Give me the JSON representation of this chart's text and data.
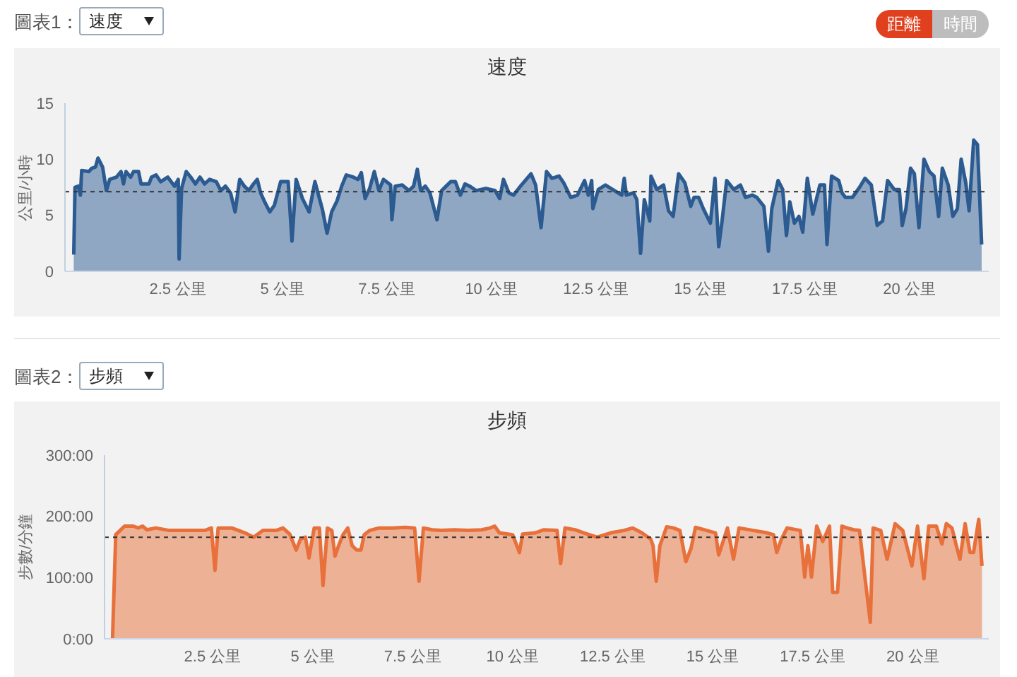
{
  "chart_data": [
    {
      "type": "area",
      "title": "速度",
      "ylabel": "公里/小時",
      "annotations": [
        "圖表1：",
        "速度",
        "距離",
        "時間"
      ],
      "color": "#2c5b91",
      "x": [
        0.01,
        0.04,
        0.12,
        0.17,
        0.2,
        0.37,
        0.44,
        0.53,
        0.59,
        0.7,
        0.79,
        0.87,
        1.03,
        1.14,
        1.2,
        1.26,
        1.37,
        1.44,
        1.56,
        1.62,
        1.81,
        1.87,
        1.98,
        2.09,
        2.26,
        2.42,
        2.51,
        2.53,
        2.59,
        2.7,
        2.81,
        2.92,
        3.03,
        3.14,
        3.26,
        3.42,
        3.53,
        3.64,
        3.76,
        3.87,
        3.98,
        4.09,
        4.2,
        4.31,
        4.4,
        4.48,
        4.59,
        4.7,
        4.81,
        4.96,
        5.14,
        5.23,
        5.33,
        5.48,
        5.64,
        5.78,
        5.96,
        6.07,
        6.18,
        6.31,
        6.42,
        6.53,
        6.7,
        6.81,
        6.89,
        6.98,
        7.09,
        7.2,
        7.31,
        7.42,
        7.59,
        7.62,
        7.7,
        7.87,
        8.03,
        8.14,
        8.23,
        8.31,
        8.42,
        8.53,
        8.7,
        8.81,
        8.92,
        9.03,
        9.14,
        9.26,
        9.37,
        9.48,
        9.64,
        9.87,
        10.09,
        10.2,
        10.29,
        10.42,
        10.53,
        10.72,
        10.95,
        11.06,
        11.19,
        11.32,
        11.45,
        11.62,
        11.73,
        11.9,
        12.06,
        12.23,
        12.32,
        12.4,
        12.43,
        12.56,
        12.73,
        12.9,
        13.12,
        13.18,
        13.23,
        13.4,
        13.48,
        13.57,
        13.66,
        13.79,
        13.82,
        13.96,
        14.12,
        14.24,
        14.35,
        14.48,
        14.63,
        14.77,
        14.85,
        14.96,
        15.07,
        15.24,
        15.35,
        15.44,
        15.52,
        15.63,
        15.8,
        15.96,
        16.08,
        16.24,
        16.35,
        16.52,
        16.63,
        16.71,
        16.86,
        16.97,
        17.06,
        17.14,
        17.25,
        17.36,
        17.45,
        17.56,
        17.69,
        17.86,
        17.97,
        18.03,
        18.14,
        18.31,
        18.39,
        18.47,
        18.64,
        18.81,
        18.94,
        19.09,
        19.23,
        19.36,
        19.48,
        19.64,
        19.76,
        19.83,
        19.92,
        20.03,
        20.12,
        20.23,
        20.35,
        20.48,
        20.59,
        20.7,
        20.79,
        20.93,
        21.04,
        21.15,
        21.24,
        21.35,
        21.43,
        21.54,
        21.63,
        21.73
      ],
      "values": [
        1.5,
        7.5,
        7.6,
        6.8,
        9.0,
        8.9,
        9.2,
        9.3,
        10.1,
        9.3,
        7.2,
        8.2,
        8.4,
        8.9,
        7.8,
        8.9,
        8.4,
        8.9,
        8.9,
        7.8,
        7.8,
        8.4,
        8.6,
        8.0,
        8.4,
        7.6,
        8.2,
        1.1,
        7.4,
        8.9,
        8.4,
        7.8,
        8.4,
        7.8,
        8.2,
        8.0,
        7.2,
        7.6,
        7.0,
        5.3,
        8.2,
        7.6,
        7.2,
        7.8,
        8.2,
        7.0,
        6.1,
        5.3,
        5.9,
        8.0,
        8.0,
        2.7,
        8.2,
        6.5,
        5.3,
        8.0,
        5.5,
        3.4,
        5.3,
        6.3,
        7.6,
        8.6,
        8.4,
        8.2,
        8.8,
        6.5,
        7.4,
        8.9,
        7.2,
        8.2,
        7.7,
        4.6,
        7.6,
        7.7,
        7.2,
        7.6,
        9.1,
        7.2,
        7.6,
        7.0,
        4.6,
        7.2,
        7.6,
        8.0,
        8.0,
        6.8,
        7.8,
        7.6,
        7.2,
        7.4,
        7.2,
        6.5,
        8.2,
        7.0,
        6.8,
        7.7,
        8.7,
        7.7,
        3.9,
        8.9,
        8.3,
        8.5,
        7.9,
        6.6,
        6.8,
        8.1,
        6.8,
        8.1,
        5.6,
        7.3,
        7.7,
        7.3,
        6.8,
        8.3,
        6.8,
        7.0,
        6.4,
        1.6,
        6.4,
        4.5,
        8.5,
        7.3,
        7.7,
        5.4,
        4.9,
        8.7,
        7.9,
        5.8,
        6.6,
        6.6,
        5.6,
        4.3,
        8.3,
        2.2,
        4.5,
        8.1,
        7.3,
        7.7,
        6.6,
        6.8,
        6.6,
        5.8,
        1.8,
        5.6,
        8.1,
        7.3,
        3.2,
        6.2,
        4.3,
        4.9,
        3.5,
        8.3,
        5.1,
        7.7,
        7.7,
        2.4,
        8.5,
        8.1,
        7.0,
        6.6,
        6.6,
        7.5,
        8.3,
        7.7,
        4.1,
        4.5,
        8.1,
        7.3,
        7.3,
        4.1,
        5.6,
        9.2,
        8.7,
        3.9,
        10.0,
        8.9,
        8.5,
        4.9,
        9.2,
        7.7,
        4.9,
        5.6,
        10.0,
        7.9,
        5.4,
        11.7,
        11.3,
        2.4
      ],
      "xlim": [
        -0.2,
        21.9
      ],
      "xticks": [
        {
          "value": 2.5,
          "label": "2.5 公里"
        },
        {
          "value": 5,
          "label": "5 公里"
        },
        {
          "value": 7.5,
          "label": "7.5 公里"
        },
        {
          "value": 10,
          "label": "10 公里"
        },
        {
          "value": 12.5,
          "label": "12.5 公里"
        },
        {
          "value": 15,
          "label": "15 公里"
        },
        {
          "value": 17.5,
          "label": "17.5 公里"
        },
        {
          "value": 20,
          "label": "20 公里"
        }
      ],
      "ylim": [
        0,
        15
      ],
      "yticks": [
        0,
        5,
        10,
        15
      ],
      "ref_lines": [
        {
          "axis": "y",
          "value": 7.1,
          "color": "#333333",
          "line_style": "dashed"
        }
      ]
    },
    {
      "type": "area",
      "title": "步頻",
      "ylabel": "步數/分鐘",
      "annotations": [
        "圖表2：",
        "步頻"
      ],
      "color": "#e8703a",
      "x": [
        0,
        0.08,
        0.19,
        0.3,
        0.52,
        0.64,
        0.75,
        0.86,
        1.08,
        1.42,
        1.86,
        2.31,
        2.47,
        2.56,
        2.64,
        2.98,
        3.31,
        3.53,
        3.76,
        4.09,
        4.26,
        4.43,
        4.59,
        4.7,
        4.82,
        4.91,
        5.04,
        5.17,
        5.26,
        5.37,
        5.48,
        5.56,
        5.65,
        5.76,
        5.88,
        5.99,
        6.1,
        6.21,
        6.29,
        6.43,
        6.66,
        6.99,
        7.32,
        7.55,
        7.66,
        7.77,
        7.99,
        8.22,
        8.55,
        8.88,
        9.22,
        9.44,
        9.55,
        9.67,
        10.0,
        10.17,
        10.25,
        10.56,
        10.78,
        11.11,
        11.2,
        11.31,
        11.56,
        11.78,
        12.11,
        12.45,
        12.78,
        13.0,
        13.23,
        13.45,
        13.51,
        13.59,
        13.68,
        13.85,
        14.02,
        14.18,
        14.33,
        14.46,
        14.57,
        14.85,
        15.07,
        15.15,
        15.24,
        15.37,
        15.52,
        15.66,
        16.02,
        16.36,
        16.52,
        16.6,
        16.72,
        16.86,
        17.19,
        17.3,
        17.38,
        17.47,
        17.6,
        17.75,
        17.92,
        18.0,
        18.12,
        18.23,
        18.36,
        18.53,
        18.67,
        18.81,
        18.94,
        19.01,
        19.2,
        19.36,
        19.56,
        19.75,
        19.98,
        20.12,
        20.28,
        20.4,
        20.59,
        20.73,
        20.84,
        20.98,
        21.09,
        21.18,
        21.31,
        21.43,
        21.52,
        21.65,
        21.73
      ],
      "values": [
        0,
        170,
        177,
        184,
        184,
        181,
        184,
        178,
        181,
        177,
        177,
        177,
        181,
        112,
        181,
        181,
        173,
        166,
        177,
        177,
        181,
        171,
        145,
        163,
        166,
        132,
        181,
        181,
        87,
        181,
        177,
        135,
        152,
        170,
        181,
        152,
        145,
        145,
        170,
        177,
        181,
        181,
        182,
        181,
        94,
        181,
        178,
        177,
        178,
        177,
        178,
        181,
        184,
        173,
        170,
        141,
        171,
        173,
        178,
        177,
        123,
        181,
        178,
        173,
        166,
        173,
        177,
        181,
        173,
        163,
        152,
        94,
        152,
        183,
        181,
        177,
        126,
        148,
        182,
        177,
        173,
        137,
        155,
        181,
        130,
        181,
        177,
        173,
        170,
        141,
        163,
        181,
        177,
        101,
        152,
        101,
        184,
        159,
        184,
        76,
        76,
        184,
        181,
        178,
        177,
        98,
        27,
        181,
        177,
        130,
        188,
        177,
        119,
        184,
        98,
        184,
        184,
        155,
        188,
        181,
        152,
        130,
        188,
        141,
        141,
        195,
        119
      ],
      "xlim": [
        -0.2,
        21.9
      ],
      "xticks": [
        {
          "value": 2.5,
          "label": "2.5 公里"
        },
        {
          "value": 5,
          "label": "5 公里"
        },
        {
          "value": 7.5,
          "label": "7.5 公里"
        },
        {
          "value": 10,
          "label": "10 公里"
        },
        {
          "value": 12.5,
          "label": "12.5 公里"
        },
        {
          "value": 15,
          "label": "15 公里"
        },
        {
          "value": 17.5,
          "label": "17.5 公里"
        },
        {
          "value": 20,
          "label": "20 公里"
        }
      ],
      "ylim": [
        0,
        300
      ],
      "yticks": [
        {
          "value": 0,
          "label": "0:00"
        },
        {
          "value": 100,
          "label": "100:00"
        },
        {
          "value": 200,
          "label": "200:00"
        },
        {
          "value": 300,
          "label": "300:00"
        }
      ],
      "ref_lines": [
        {
          "axis": "y",
          "value": 166,
          "color": "#333333",
          "line_style": "dashed"
        }
      ]
    }
  ]
}
